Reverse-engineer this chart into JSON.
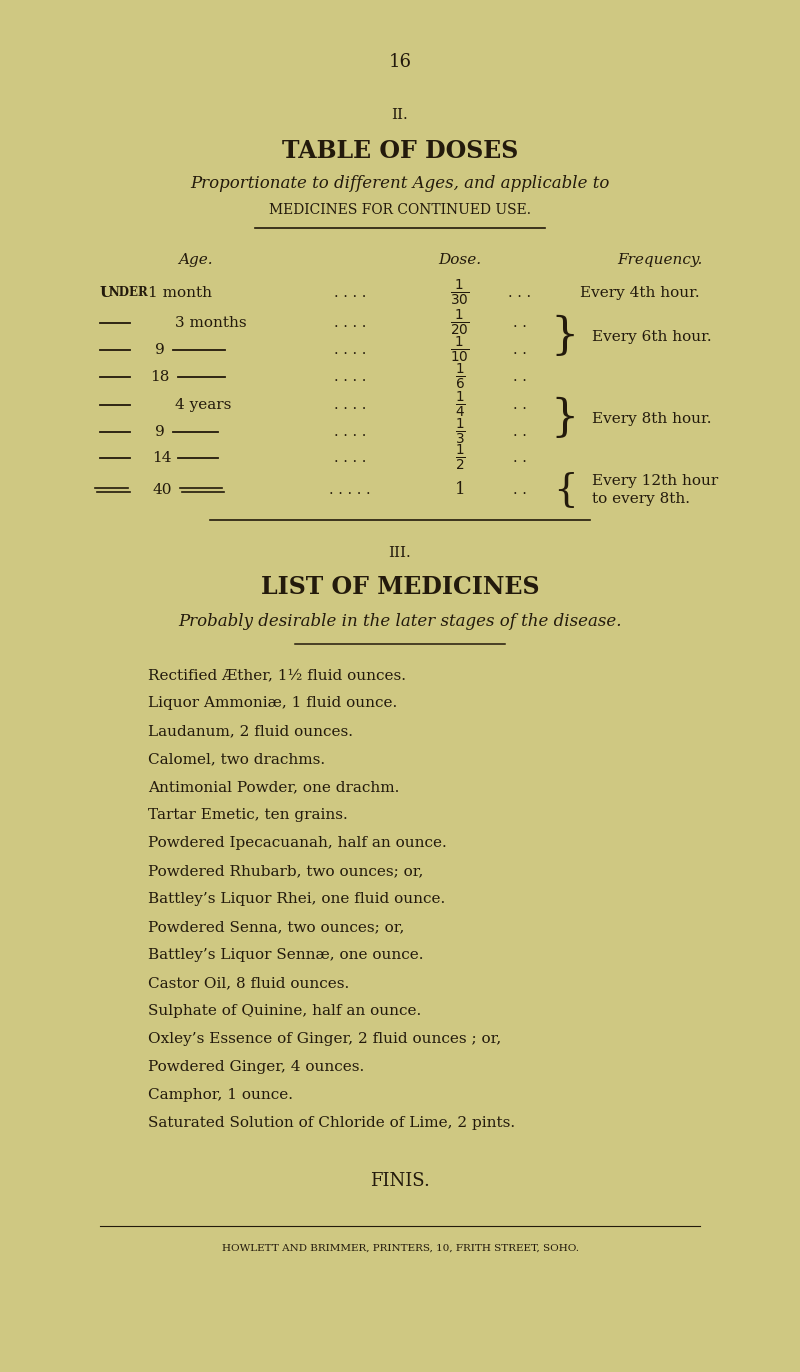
{
  "bg_color": "#cfc882",
  "text_color": "#231a0c",
  "page_number": "16",
  "section_ii": "II.",
  "title": "TABLE OF DOSES",
  "subtitle_italic": "Proportionate to different Ages, and applicable to",
  "subtitle2": "MEDICINES FOR CONTINUED USE.",
  "age_header": "Age.",
  "dose_header": "Dose.",
  "freq_header": "Frequency.",
  "section_iii": "III.",
  "list_title": "LIST OF MEDICINES",
  "list_subtitle": "Probably desirable in the later stages of the disease.",
  "medicines": [
    "Rectified Æther, 1½ fluid ounces.",
    "Liquor Ammoniæ, 1 fluid ounce.",
    "Laudanum, 2 fluid ounces.",
    "Calomel, two drachms.",
    "Antimonial Powder, one drachm.",
    "Tartar Emetic, ten grains.",
    "Powdered Ipecacuanah, half an ounce.",
    "Powdered Rhubarb, two ounces; or,",
    "Battley’s Liquor Rhei, one fluid ounce.",
    "Powdered Senna, two ounces; or,",
    "Battley’s Liquor Sennæ, one ounce.",
    "Castor Oil, 8 fluid ounces.",
    "Sulphate of Quinine, half an ounce.",
    "Oxley’s Essence of Ginger, 2 fluid ounces ; or,",
    "Powdered Ginger, 4 ounces.",
    "Camphor, 1 ounce.",
    "Saturated Solution of Chloride of Lime, 2 pints."
  ],
  "finis": "FINIS.",
  "printer": "HOWLETT AND BRIMMER, PRINTERS, 10, FRITH STREET, SOHO."
}
